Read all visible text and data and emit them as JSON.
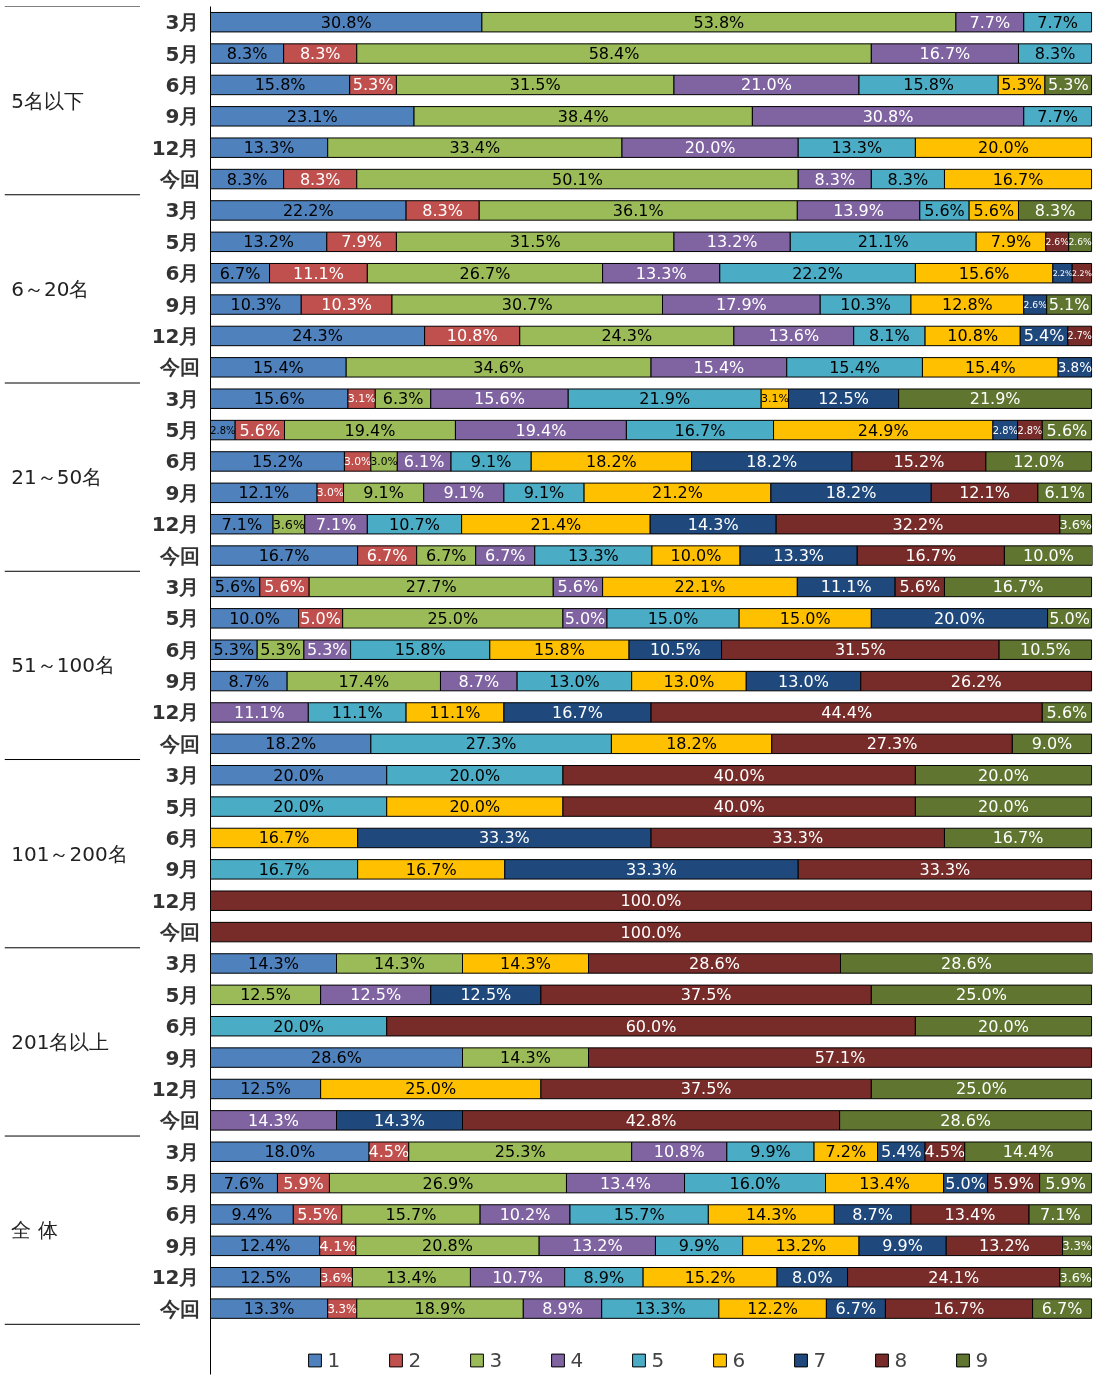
{
  "chart_data": {
    "type": "bar",
    "orientation": "horizontal",
    "stacked": true,
    "legend": "bottom",
    "grid": false,
    "tick_labels": "y",
    "categories": [
      "3月",
      "5月",
      "6月",
      "9月",
      "12月",
      "今回",
      "3月",
      "5月",
      "6月",
      "9月",
      "12月",
      "今回",
      "3月",
      "5月",
      "6月",
      "9月",
      "12月",
      "今回",
      "3月",
      "5月",
      "6月",
      "9月",
      "12月",
      "今回",
      "3月",
      "5月",
      "6月",
      "9月",
      "12月",
      "今回",
      "3月",
      "5月",
      "6月",
      "9月",
      "12月",
      "今回",
      "3月",
      "5月",
      "6月",
      "9月",
      "12月",
      "今回"
    ],
    "annotations": [
      "5名以下",
      "6～20名",
      "21～50名",
      "51～100名",
      "101～200名",
      "201名以上",
      "全 体"
    ],
    "series": [
      {
        "name": "1",
        "color": "#4f81bd",
        "values": [
          30.8,
          8.3,
          15.8,
          23.1,
          13.3,
          8.3,
          22.2,
          13.2,
          6.7,
          10.3,
          24.3,
          15.4,
          15.6,
          2.8,
          15.2,
          12.1,
          7.1,
          16.7,
          5.6,
          10.0,
          5.3,
          8.7,
          null,
          18.2,
          20.0,
          null,
          null,
          null,
          null,
          null,
          14.3,
          null,
          null,
          28.6,
          12.5,
          null,
          18.0,
          7.6,
          9.4,
          12.4,
          12.5,
          13.3
        ],
        "value_labels": [
          "30.8%",
          "8.3%",
          "15.8%",
          "23.1%",
          "13.3%",
          "8.3%",
          "22.2%",
          "13.2%",
          "6.7%",
          "10.3%",
          "24.3%",
          "15.4%",
          "15.6%",
          "2.8%",
          "15.2%",
          "12.1%",
          "7.1%",
          "16.7%",
          "5.6%",
          "10.0%",
          "5.3%",
          "8.7%",
          null,
          "18.2%",
          "20.0%",
          null,
          null,
          null,
          null,
          null,
          "14.3%",
          null,
          null,
          "28.6%",
          "12.5%",
          null,
          "18.0%",
          "7.6%",
          "9.4%",
          "12.4%",
          "12.5%",
          "13.3%"
        ]
      },
      {
        "name": "2",
        "color": "#c0504d",
        "values": [
          null,
          8.3,
          5.3,
          null,
          null,
          8.3,
          8.3,
          7.9,
          11.1,
          10.3,
          10.8,
          null,
          3.1,
          5.6,
          3.0,
          3.0,
          null,
          6.7,
          5.6,
          5.0,
          null,
          null,
          null,
          null,
          null,
          null,
          null,
          null,
          null,
          null,
          null,
          null,
          null,
          null,
          null,
          null,
          4.5,
          5.9,
          5.5,
          4.1,
          3.6,
          3.3
        ],
        "value_labels": [
          null,
          "8.3%",
          "5.3%",
          null,
          null,
          "8.3%",
          "8.3%",
          "7.9%",
          "11.1%",
          "10.3%",
          "10.8%",
          null,
          "3.1%",
          "5.6%",
          "3.0%",
          "3.0%",
          null,
          "6.7%",
          "5.6%",
          "5.0%",
          null,
          null,
          null,
          null,
          null,
          null,
          null,
          null,
          null,
          null,
          null,
          null,
          null,
          null,
          null,
          null,
          "4.5%",
          "5.9%",
          "5.5%",
          "4.1%",
          "3.6%",
          "3.3%"
        ]
      },
      {
        "name": "3",
        "color": "#9bbb59",
        "values": [
          53.8,
          58.4,
          31.5,
          38.4,
          33.4,
          50.1,
          36.1,
          31.5,
          26.7,
          30.7,
          24.3,
          34.6,
          6.3,
          19.4,
          3.0,
          9.1,
          3.6,
          6.7,
          27.7,
          25.0,
          5.3,
          17.4,
          null,
          null,
          null,
          null,
          null,
          null,
          null,
          null,
          14.3,
          12.5,
          null,
          14.3,
          null,
          null,
          25.3,
          26.9,
          15.7,
          20.8,
          13.4,
          18.9
        ],
        "value_labels": [
          "53.8%",
          "58.4%",
          "31.5%",
          "38.4%",
          "33.4%",
          "50.1%",
          "36.1%",
          "31.5%",
          "26.7%",
          "30.7%",
          "24.3%",
          "34.6%",
          "6.3%",
          "19.4%",
          "3.0%",
          "9.1%",
          "3.6%",
          "6.7%",
          "27.7%",
          "25.0%",
          "5.3%",
          "17.4%",
          null,
          null,
          null,
          null,
          null,
          null,
          null,
          null,
          "14.3%",
          "12.5%",
          null,
          "14.3%",
          null,
          null,
          "25.3%",
          "26.9%",
          "15.7%",
          "20.8%",
          "13.4%",
          "18.9%"
        ]
      },
      {
        "name": "4",
        "color": "#8064a2",
        "values": [
          7.7,
          16.7,
          21.0,
          30.8,
          20.0,
          8.3,
          13.9,
          13.2,
          13.3,
          17.9,
          13.6,
          15.4,
          15.6,
          19.4,
          6.1,
          9.1,
          7.1,
          6.7,
          5.6,
          5.0,
          5.3,
          8.7,
          11.1,
          null,
          null,
          null,
          null,
          null,
          null,
          null,
          null,
          12.5,
          null,
          null,
          null,
          14.3,
          10.8,
          13.4,
          10.2,
          13.2,
          10.7,
          8.9
        ],
        "value_labels": [
          "7.7%",
          "16.7%",
          "21.0%",
          "30.8%",
          "20.0%",
          "8.3%",
          "13.9%",
          "13.2%",
          "13.3%",
          "17.9%",
          "13.6%",
          "15.4%",
          "15.6%",
          "19.4%",
          "6.1%",
          "9.1%",
          "7.1%",
          "6.7%",
          "5.6%",
          "5.0%",
          "5.3%",
          "8.7%",
          "11.1%",
          null,
          null,
          null,
          null,
          null,
          null,
          null,
          null,
          "12.5%",
          null,
          null,
          null,
          "14.3%",
          "10.8%",
          "13.4%",
          "10.2%",
          "13.2%",
          "10.7%",
          "8.9%"
        ]
      },
      {
        "name": "5",
        "color": "#4bacc6",
        "values": [
          7.7,
          8.3,
          15.8,
          7.7,
          13.3,
          8.3,
          5.6,
          21.1,
          22.2,
          10.3,
          8.1,
          15.4,
          21.9,
          16.7,
          9.1,
          9.1,
          10.7,
          13.3,
          null,
          15.0,
          15.8,
          13.0,
          11.1,
          27.3,
          20.0,
          20.0,
          null,
          16.7,
          null,
          null,
          null,
          null,
          20.0,
          null,
          null,
          null,
          9.9,
          16.0,
          15.7,
          9.9,
          8.9,
          13.3
        ],
        "value_labels": [
          "7.7%",
          "8.3%",
          "15.8%",
          "7.7%",
          "13.3%",
          "8.3%",
          "5.6%",
          "21.1%",
          "22.2%",
          "10.3%",
          "8.1%",
          "15.4%",
          "21.9%",
          "16.7%",
          "9.1%",
          "9.1%",
          "10.7%",
          "13.3%",
          null,
          "15.0%",
          "15.8%",
          "13.0%",
          "11.1%",
          "27.3%",
          "20.0%",
          "20.0%",
          null,
          "16.7%",
          null,
          null,
          null,
          null,
          "20.0%",
          null,
          null,
          null,
          "9.9%",
          "16.0%",
          "15.7%",
          "9.9%",
          "8.9%",
          "13.3%"
        ]
      },
      {
        "name": "6",
        "color": "#ffc000",
        "values": [
          null,
          null,
          5.3,
          null,
          20.0,
          16.7,
          5.6,
          7.9,
          15.6,
          12.8,
          10.8,
          15.4,
          3.1,
          24.9,
          18.2,
          21.2,
          21.4,
          10.0,
          22.1,
          15.0,
          15.8,
          13.0,
          11.1,
          18.2,
          null,
          20.0,
          16.7,
          16.7,
          null,
          null,
          14.3,
          null,
          null,
          null,
          25.0,
          null,
          7.2,
          13.4,
          14.3,
          13.2,
          15.2,
          12.2
        ],
        "value_labels": [
          null,
          null,
          "5.3%",
          null,
          "20.0%",
          "16.7%",
          "5.6%",
          "7.9%",
          "15.6%",
          "12.8%",
          "10.8%",
          "15.4%",
          "3.1%",
          "24.9%",
          "18.2%",
          "21.2%",
          "21.4%",
          "10.0%",
          "22.1%",
          "15.0%",
          "15.8%",
          "13.0%",
          "11.1%",
          "18.2%",
          null,
          "20.0%",
          "16.7%",
          "16.7%",
          null,
          null,
          "14.3%",
          null,
          null,
          null,
          "25.0%",
          null,
          "7.2%",
          "13.4%",
          "14.3%",
          "13.2%",
          "15.2%",
          "12.2%"
        ]
      },
      {
        "name": "7",
        "color": "#1f497d",
        "values": [
          null,
          null,
          null,
          null,
          null,
          null,
          null,
          null,
          2.2,
          2.6,
          5.4,
          3.8,
          12.5,
          2.8,
          18.2,
          18.2,
          14.3,
          13.3,
          11.1,
          20.0,
          10.5,
          13.0,
          16.7,
          null,
          null,
          null,
          33.3,
          33.3,
          null,
          null,
          null,
          12.5,
          null,
          null,
          null,
          14.3,
          5.4,
          5.0,
          8.7,
          9.9,
          8.0,
          6.7
        ],
        "value_labels": [
          null,
          null,
          null,
          null,
          null,
          null,
          null,
          null,
          "2.2%",
          "2.6%",
          "5.4%",
          "3.8%",
          "12.5%",
          "2.8%",
          "18.2%",
          "18.2%",
          "14.3%",
          "13.3%",
          "11.1%",
          "20.0%",
          "10.5%",
          "13.0%",
          "16.7%",
          null,
          null,
          null,
          "33.3%",
          "33.3%",
          null,
          null,
          null,
          "12.5%",
          null,
          null,
          null,
          "14.3%",
          "5.4%",
          "5.0%",
          "8.7%",
          "9.9%",
          "8.0%",
          "6.7%"
        ]
      },
      {
        "name": "8",
        "color": "#772c2a",
        "values": [
          null,
          null,
          null,
          null,
          null,
          null,
          null,
          2.6,
          2.2,
          null,
          2.7,
          null,
          null,
          2.8,
          15.2,
          12.1,
          32.2,
          16.7,
          5.6,
          null,
          31.5,
          26.2,
          44.4,
          27.3,
          40.0,
          40.0,
          33.3,
          33.3,
          100.0,
          100.0,
          28.6,
          37.5,
          60.0,
          57.1,
          37.5,
          42.8,
          4.5,
          5.9,
          13.4,
          13.2,
          24.1,
          16.7
        ],
        "value_labels": [
          null,
          null,
          null,
          null,
          null,
          null,
          null,
          "2.6%",
          "2.2%",
          null,
          "2.7%",
          null,
          null,
          "2.8%",
          "15.2%",
          "12.1%",
          "32.2%",
          "16.7%",
          "5.6%",
          null,
          "31.5%",
          "26.2%",
          "44.4%",
          "27.3%",
          "40.0%",
          "40.0%",
          "33.3%",
          "33.3%",
          "100.0%",
          "100.0%",
          "28.6%",
          "37.5%",
          "60.0%",
          "57.1%",
          "37.5%",
          "42.8%",
          "4.5%",
          "5.9%",
          "13.4%",
          "13.2%",
          "24.1%",
          "16.7%"
        ]
      },
      {
        "name": "9",
        "color": "#5f7530",
        "values": [
          null,
          null,
          5.3,
          null,
          null,
          null,
          8.3,
          2.6,
          null,
          5.1,
          null,
          null,
          21.9,
          5.6,
          12.0,
          6.1,
          3.6,
          10.0,
          16.7,
          5.0,
          10.5,
          null,
          5.6,
          9.0,
          20.0,
          20.0,
          16.7,
          null,
          null,
          null,
          28.6,
          25.0,
          20.0,
          null,
          25.0,
          28.6,
          14.4,
          5.9,
          7.1,
          3.3,
          3.6,
          6.7
        ],
        "value_labels": [
          null,
          null,
          "5.3%",
          null,
          null,
          null,
          "8.3%",
          "2.6%",
          null,
          "5.1%",
          null,
          null,
          "21.9%",
          "5.6%",
          "12.0%",
          "6.1%",
          "3.6%",
          "10.0%",
          "16.7%",
          "5.0%",
          "10.5%",
          null,
          "5.6%",
          "9.0%",
          "20.0%",
          "20.0%",
          "16.7%",
          null,
          null,
          null,
          "28.6%",
          "25.0%",
          "20.0%",
          null,
          "25.0%",
          "28.6%",
          "14.4%",
          "5.9%",
          "7.1%",
          "3.3%",
          "3.6%",
          "6.7%"
        ]
      }
    ]
  }
}
